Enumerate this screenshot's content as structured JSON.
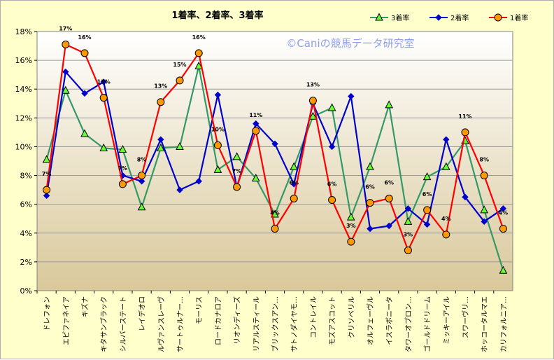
{
  "chart_data": {
    "type": "line",
    "title": "1着率、2着率、3着率",
    "watermark": "©Caniの競馬データ研究室",
    "ylim": [
      0,
      18
    ],
    "yticks": [
      "0%",
      "2%",
      "4%",
      "6%",
      "8%",
      "10%",
      "12%",
      "14%",
      "16%",
      "18%"
    ],
    "grid": true,
    "legend_position": "top-right",
    "categories": [
      "ドレフォン",
      "エピファネイア",
      "キズナ",
      "キタサンブラック",
      "シルバーステート",
      "レイデオロ",
      "ルヴァンスレーヴ",
      "サートゥルナー…",
      "モーリス",
      "ロードカナロア",
      "リオンディーズ",
      "リアルスティール",
      "ブリックスアン…",
      "サトノダイヤモ…",
      "コントレイル",
      "モズアスコット",
      "クリソベリル",
      "オルフェーヴル",
      "イスラボニータ",
      "タワーオブロン…",
      "ゴールドドリーム",
      "ミッキーアイル",
      "スワーヴリ…",
      "ホッコータルマエ",
      "カリフォルニア…"
    ],
    "series": [
      {
        "name": "3着率",
        "color": "#339966",
        "marker": "triangle",
        "marker_fill": "#66ff33",
        "values": [
          9.1,
          13.9,
          10.9,
          9.9,
          9.8,
          5.8,
          9.9,
          10.0,
          15.6,
          8.4,
          9.3,
          7.8,
          5.3,
          8.6,
          12.1,
          12.7,
          5.1,
          8.6,
          12.9,
          4.8,
          7.9,
          8.6,
          10.4,
          5.6,
          1.4
        ]
      },
      {
        "name": "2着率",
        "color": "#0000cc",
        "marker": "diamond",
        "marker_fill": "#0000cc",
        "values": [
          6.6,
          15.2,
          13.7,
          14.5,
          8.0,
          7.6,
          10.5,
          7.0,
          7.6,
          13.6,
          7.2,
          11.6,
          10.2,
          7.4,
          13.0,
          10.0,
          13.5,
          4.3,
          4.5,
          5.7,
          4.6,
          10.5,
          6.5,
          4.8,
          5.7
        ]
      },
      {
        "name": "1着率",
        "color": "#ff0000",
        "marker": "circle",
        "marker_fill": "#ff9900",
        "values": [
          7.0,
          17.1,
          16.5,
          13.4,
          7.4,
          8.0,
          13.1,
          14.6,
          16.5,
          10.1,
          7.2,
          11.1,
          4.3,
          6.4,
          13.2,
          6.3,
          3.4,
          6.1,
          6.4,
          2.8,
          5.6,
          3.9,
          11.0,
          8.0,
          4.3
        ],
        "data_labels": [
          "7%",
          "17%",
          "16%",
          "13%",
          "7%",
          "8%",
          "13%",
          "15%",
          "16%",
          "10%",
          "7%",
          "11%",
          "4%",
          "6%",
          "13%",
          "6%",
          "3%",
          "6%",
          "6%",
          "3%",
          "6%",
          "4%",
          "11%",
          "8%",
          "4%"
        ]
      }
    ]
  }
}
